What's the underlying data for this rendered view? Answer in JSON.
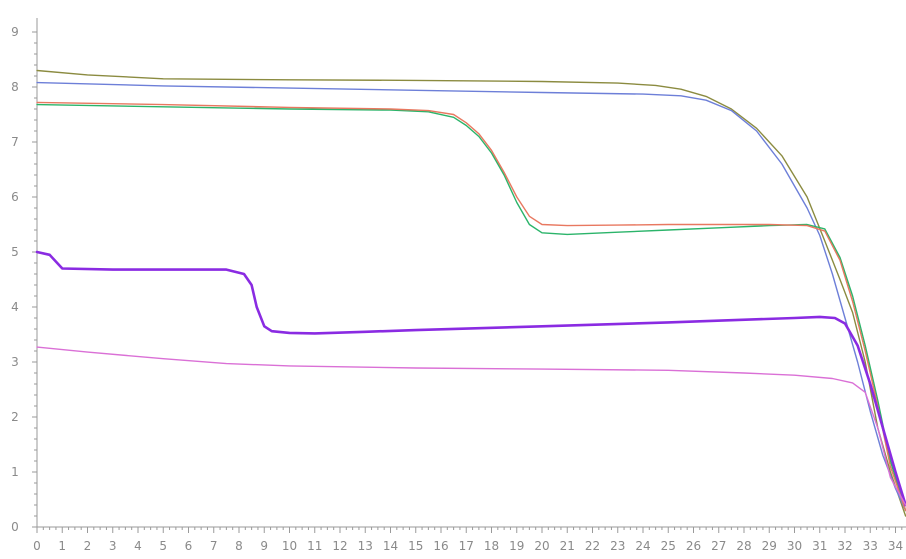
{
  "chart_data": {
    "type": "line",
    "title": "",
    "xlabel": "",
    "ylabel": "",
    "xlim": [
      0,
      34.4
    ],
    "ylim": [
      0,
      9
    ],
    "x_ticks": [
      0,
      1,
      2,
      3,
      4,
      5,
      6,
      7,
      8,
      9,
      10,
      11,
      12,
      13,
      14,
      15,
      16,
      17,
      18,
      19,
      20,
      21,
      22,
      23,
      24,
      25,
      26,
      27,
      28,
      29,
      30,
      31,
      32,
      33,
      34
    ],
    "y_ticks": [
      0,
      1,
      2,
      3,
      4,
      5,
      6,
      7,
      8,
      9
    ],
    "grid": false,
    "legend": "none",
    "series": [
      {
        "color": "#8b8b40",
        "x": [
          0,
          2,
          5,
          10,
          15,
          20,
          23,
          24.5,
          25.5,
          26.5,
          27.5,
          28.5,
          29.5,
          30.5,
          31.2,
          31.8,
          32.3,
          32.8,
          33.3,
          33.8,
          34.4
        ],
        "y": [
          8.3,
          8.22,
          8.15,
          8.13,
          8.12,
          8.1,
          8.07,
          8.03,
          7.96,
          7.83,
          7.6,
          7.25,
          6.75,
          6.0,
          5.2,
          4.5,
          3.9,
          3.0,
          1.8,
          1.0,
          0.2
        ]
      },
      {
        "color": "#6d7fd8",
        "x": [
          0,
          5,
          10,
          15,
          20,
          24,
          25.5,
          26.5,
          27.5,
          28.5,
          29.5,
          30.5,
          31,
          31.5,
          32,
          32.5,
          33,
          33.5,
          34,
          34.4
        ],
        "y": [
          8.08,
          8.02,
          7.98,
          7.94,
          7.9,
          7.87,
          7.84,
          7.76,
          7.57,
          7.2,
          6.6,
          5.8,
          5.3,
          4.6,
          3.8,
          3.0,
          2.1,
          1.3,
          0.7,
          0.3
        ]
      },
      {
        "color": "#2bb46a",
        "x": [
          0,
          5,
          10,
          14,
          15.5,
          16.5,
          17,
          17.5,
          18,
          18.5,
          19,
          19.5,
          20,
          21,
          23,
          25,
          27,
          29,
          30.5,
          31.2,
          31.8,
          32.3,
          32.8,
          33.3,
          33.8,
          34.4
        ],
        "y": [
          7.68,
          7.64,
          7.6,
          7.58,
          7.55,
          7.45,
          7.3,
          7.1,
          6.8,
          6.4,
          5.9,
          5.5,
          5.35,
          5.32,
          5.36,
          5.4,
          5.44,
          5.48,
          5.5,
          5.42,
          4.9,
          4.2,
          3.3,
          2.3,
          1.2,
          0.3
        ]
      },
      {
        "color": "#e87860",
        "x": [
          0,
          5,
          10,
          14,
          15.5,
          16.5,
          17,
          17.5,
          18,
          18.5,
          19,
          19.5,
          20,
          21,
          23,
          25,
          27,
          29,
          30.5,
          31.2,
          31.8,
          32.3,
          32.8,
          33.3,
          33.8,
          34.4
        ],
        "y": [
          7.72,
          7.68,
          7.63,
          7.6,
          7.57,
          7.5,
          7.35,
          7.15,
          6.85,
          6.45,
          6.0,
          5.65,
          5.5,
          5.48,
          5.49,
          5.5,
          5.5,
          5.5,
          5.48,
          5.38,
          4.85,
          4.1,
          3.2,
          2.2,
          1.1,
          0.3
        ]
      },
      {
        "color": "#8a2be2",
        "x": [
          0,
          0.5,
          1,
          3,
          5,
          7.5,
          8.2,
          8.5,
          8.7,
          9,
          9.3,
          10,
          11,
          13,
          15,
          20,
          25,
          30,
          31,
          31.6,
          32,
          32.5,
          33,
          33.5,
          34,
          34.4
        ],
        "y": [
          5.0,
          4.95,
          4.7,
          4.68,
          4.68,
          4.68,
          4.6,
          4.4,
          4.0,
          3.65,
          3.56,
          3.53,
          3.52,
          3.55,
          3.58,
          3.65,
          3.72,
          3.8,
          3.82,
          3.8,
          3.7,
          3.3,
          2.6,
          1.8,
          1.0,
          0.4
        ]
      },
      {
        "color": "#da70d6",
        "x": [
          0,
          2,
          5,
          7.5,
          10,
          15,
          20,
          25,
          28,
          30,
          31.5,
          32.3,
          32.8,
          33.3,
          33.8,
          34.4
        ],
        "y": [
          3.27,
          3.18,
          3.06,
          2.97,
          2.93,
          2.89,
          2.87,
          2.85,
          2.8,
          2.76,
          2.7,
          2.62,
          2.45,
          1.8,
          0.9,
          0.4
        ]
      }
    ]
  }
}
